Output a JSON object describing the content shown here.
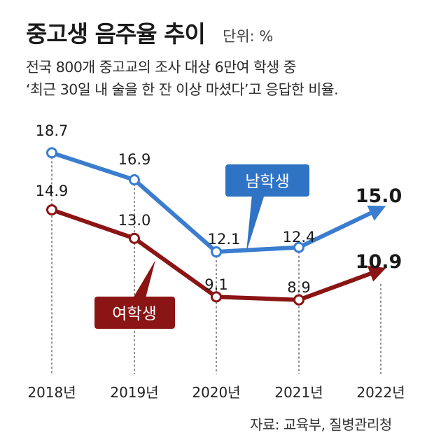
{
  "header": {
    "title": "중고생 음주율 추이",
    "unit": "단위: %",
    "subtitle_line1": "전국 800개 중고교의 조사 대상 6만여 학생 중",
    "subtitle_line2": "‘최근 30일 내 술을 한 잔 이상 마셨다’고 응답한 비율."
  },
  "source": "자료: 교육부, 질병관리청",
  "colors": {
    "male": "#3a7dcf",
    "female": "#8b1414",
    "male_label_bg": "#2f73c4",
    "female_label_bg": "#8b1414"
  },
  "chart_data": {
    "type": "line",
    "title": "중고생 음주율 추이",
    "ylabel": "단위: %",
    "categories": [
      "2018년",
      "2019년",
      "2020년",
      "2021년",
      "2022년"
    ],
    "series": [
      {
        "name": "남학생",
        "values": [
          18.7,
          16.9,
          12.1,
          12.4,
          15.0
        ],
        "labels": [
          "18.7",
          "16.9",
          "12.1",
          "12.4",
          "15.0"
        ]
      },
      {
        "name": "여학생",
        "values": [
          14.9,
          13.0,
          9.1,
          8.9,
          10.9
        ],
        "labels": [
          "14.9",
          "13.0",
          "9.1",
          "8.9",
          "10.9"
        ]
      }
    ],
    "ylim": [
      8.0,
      19.0
    ],
    "grid": false,
    "legend": "inline-callouts"
  }
}
